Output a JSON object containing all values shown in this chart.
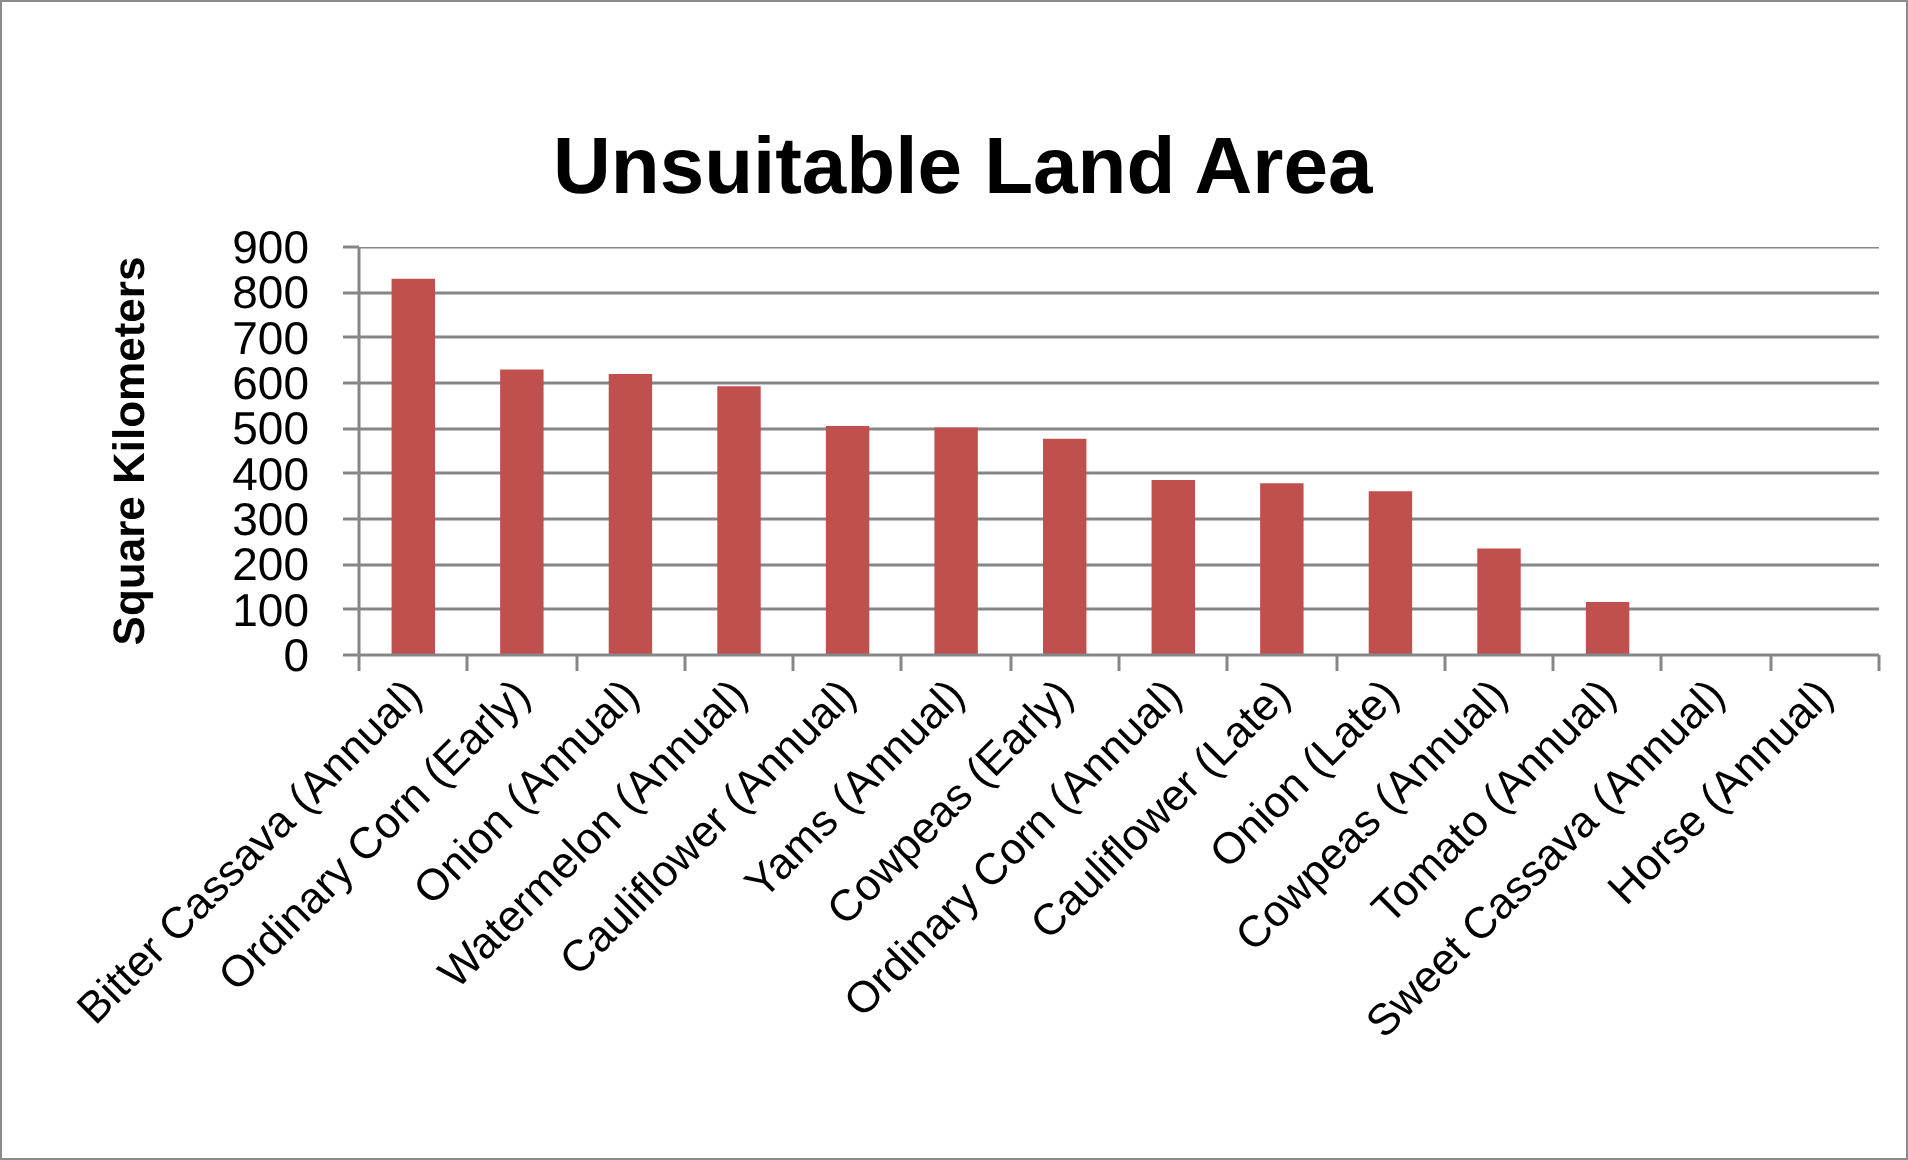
{
  "chart_data": {
    "type": "bar",
    "title": "Unsuitable Land Area",
    "ylabel": "Square Kilometers",
    "categories": [
      "Bitter Cassava (Annual)",
      "Ordinary Corn (Early)",
      "Onion (Annual)",
      "Watermelon (Annual)",
      "Cauliflower (Annual)",
      "Yams (Annual)",
      "Cowpeas (Early)",
      "Ordinary Corn (Annual)",
      "Cauliflower (Late)",
      "Onion (Late)",
      "Cowpeas (Annual)",
      "Tomato (Annual)",
      "Sweet Cassava (Annual)",
      "Horse (Annual)"
    ],
    "values": [
      830,
      630,
      620,
      593,
      505,
      502,
      477,
      386,
      379,
      361,
      235,
      117,
      0,
      0
    ],
    "color": "#c0504d",
    "ylim": [
      0,
      900
    ],
    "yticks": [
      0,
      100,
      200,
      300,
      400,
      500,
      600,
      700,
      800,
      900
    ],
    "grid": "y"
  }
}
